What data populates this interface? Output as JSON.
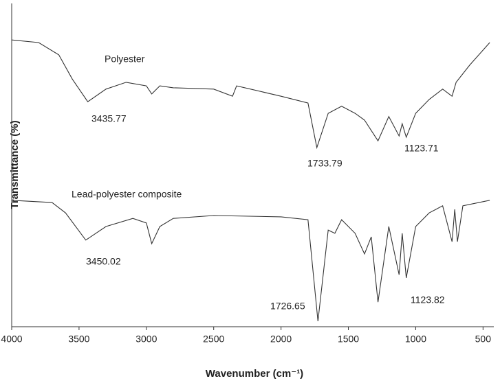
{
  "chart_data": {
    "type": "line",
    "xlabel": "Wavenumber (cm⁻¹)",
    "ylabel": "Transmittance (%)",
    "xlim": [
      4000,
      420
    ],
    "xticks": [
      4000,
      3500,
      3000,
      2500,
      2000,
      1500,
      1000,
      500
    ],
    "ylim": [
      0,
      100
    ],
    "series": [
      {
        "name": "Polyester",
        "color": "#333333",
        "x": [
          4000,
          3800,
          3650,
          3550,
          3435,
          3300,
          3150,
          3000,
          2960,
          2900,
          2800,
          2500,
          2360,
          2330,
          2000,
          1800,
          1734,
          1650,
          1550,
          1450,
          1380,
          1280,
          1200,
          1123,
          1100,
          1070,
          1000,
          900,
          800,
          730,
          700,
          600,
          450
        ],
        "values": [
          88.7,
          87.9,
          84.1,
          76.6,
          69.6,
          73.5,
          75.6,
          74.5,
          72.0,
          74.5,
          73.9,
          73.5,
          71.3,
          74.5,
          71.3,
          69.2,
          55.4,
          66.0,
          68.2,
          66.0,
          63.9,
          57.5,
          65.0,
          59.0,
          62.8,
          58.6,
          66.0,
          70.3,
          73.5,
          71.3,
          75.6,
          80.9,
          87.9
        ]
      },
      {
        "name": "Lead-polyester composite",
        "color": "#333333",
        "x": [
          4000,
          3700,
          3600,
          3450,
          3300,
          3100,
          3000,
          2960,
          2900,
          2800,
          2500,
          2000,
          1800,
          1726,
          1650,
          1600,
          1550,
          1450,
          1380,
          1330,
          1280,
          1200,
          1123,
          1100,
          1070,
          1000,
          900,
          800,
          730,
          710,
          690,
          650,
          450
        ],
        "values": [
          39.1,
          38.4,
          35.2,
          26.8,
          31.0,
          33.5,
          32.1,
          25.7,
          31.0,
          33.5,
          34.4,
          34.0,
          33.1,
          1.7,
          29.9,
          28.9,
          33.1,
          28.9,
          22.5,
          27.8,
          7.6,
          31.0,
          16.1,
          28.9,
          15.1,
          31.0,
          35.2,
          37.4,
          26.3,
          36.3,
          26.3,
          37.4,
          39.1
        ]
      }
    ],
    "annotations": [
      "3435.77",
      "1733.79",
      "1123.71",
      "3450.02",
      "1726.65",
      "1123.82"
    ]
  }
}
